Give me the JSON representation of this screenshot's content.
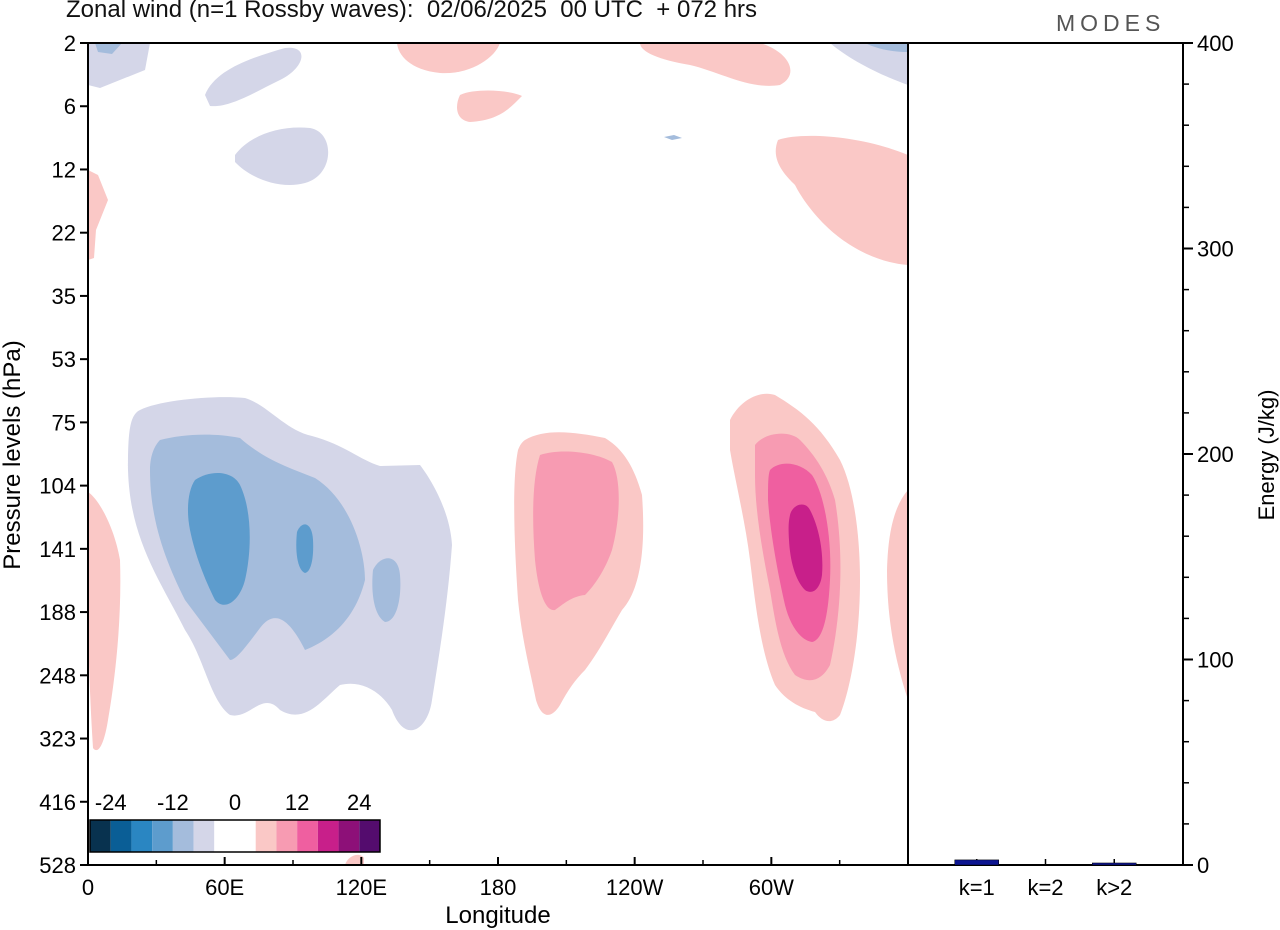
{
  "title": "Zonal wind (n=1 Rossby waves):  02/06/2025  00 UTC  + 072 hrs",
  "logo": "MODES",
  "chart_data": [
    {
      "type": "heatmap",
      "xlabel": "Longitude",
      "ylabel": "Pressure levels (hPa)",
      "x_ticks": [
        "0",
        "60E",
        "120E",
        "180",
        "120W",
        "60W"
      ],
      "y_ticks": [
        "2",
        "6",
        "12",
        "22",
        "35",
        "53",
        "75",
        "104",
        "141",
        "188",
        "248",
        "323",
        "416",
        "528"
      ],
      "colorbar": {
        "labels": [
          "-24",
          "-12",
          "0",
          "12",
          "24"
        ],
        "colors": [
          "#08324f",
          "#0a5e96",
          "#2a86c2",
          "#5d9ccd",
          "#a4bcdc",
          "#d4d6e8",
          "#ffffff",
          "#ffffff",
          "#fac8c6",
          "#f79bb2",
          "#ef5fa0",
          "#c81f8a",
          "#8d1078",
          "#540c6e"
        ]
      },
      "features": [
        {
          "name": "negative anomaly",
          "center_lon": "60E",
          "center_level": 120,
          "peak": -12
        },
        {
          "name": "positive anomaly",
          "center_lon": "180",
          "center_level": 141,
          "peak": 6
        },
        {
          "name": "positive anomaly",
          "center_lon": "60W",
          "center_level": 141,
          "peak": 15
        }
      ]
    },
    {
      "type": "bar",
      "categories": [
        "k=1",
        "k=2",
        "k>2"
      ],
      "values": [
        2,
        0,
        0.5
      ],
      "ylabel": "Energy (J/kg)",
      "ylim": [
        0,
        400
      ],
      "y_ticks": [
        "0",
        "100",
        "200",
        "300",
        "400"
      ],
      "colors": {
        "bar": "#0d1591"
      }
    }
  ]
}
